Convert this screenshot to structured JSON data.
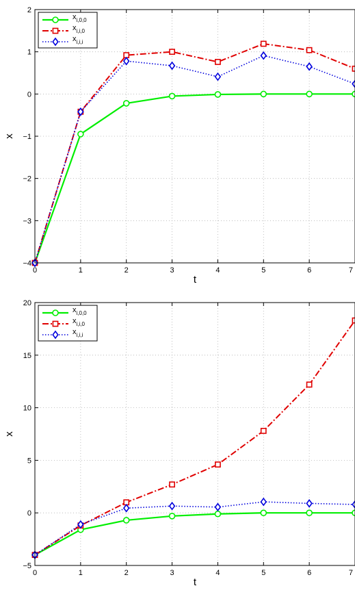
{
  "colors": {
    "x_i00": "#00ee00",
    "x_ii0": "#e00000",
    "x_iii": "#0000dd",
    "grid": "#b0b0b0",
    "axes": "#000000"
  },
  "legend_entries": [
    {
      "base": "x",
      "sub": "i,0,0",
      "key": "x_i00",
      "marker": "circle",
      "dash": "solid"
    },
    {
      "base": "x",
      "sub": "i,i,0",
      "key": "x_ii0",
      "marker": "square",
      "dash": "dashdot"
    },
    {
      "base": "x",
      "sub": "i,i,i",
      "key": "x_iii",
      "marker": "diamond",
      "dash": "dotted"
    }
  ],
  "chart_data": [
    {
      "type": "line",
      "xlabel": "t",
      "ylabel": "x",
      "xlim": [
        0,
        7
      ],
      "ylim": [
        -4,
        2
      ],
      "xticks": [
        0,
        1,
        2,
        3,
        4,
        5,
        6,
        7
      ],
      "yticks": [
        -4,
        -3,
        -2,
        -1,
        0,
        1,
        2
      ],
      "xtick_labels": [
        "0",
        "1",
        "2",
        "3",
        "4",
        "5",
        "6",
        "7"
      ],
      "ytick_labels": [
        "−4",
        "−3",
        "−2",
        "−1",
        "0",
        "1",
        "2"
      ],
      "grid": true,
      "legend": "top-left",
      "x": [
        0,
        1,
        2,
        3,
        4,
        5,
        6,
        7
      ],
      "series": [
        {
          "name": "x_{i,0,0}",
          "key": "x_i00",
          "values": [
            -4,
            -0.95,
            -0.22,
            -0.05,
            -0.01,
            0.0,
            0.0,
            0.0
          ]
        },
        {
          "name": "x_{i,i,0}",
          "key": "x_ii0",
          "values": [
            -4,
            -0.42,
            0.92,
            1.0,
            0.76,
            1.19,
            1.04,
            0.6
          ]
        },
        {
          "name": "x_{i,i,i}",
          "key": "x_iii",
          "values": [
            -4,
            -0.42,
            0.78,
            0.67,
            0.41,
            0.91,
            0.65,
            0.24
          ]
        }
      ]
    },
    {
      "type": "line",
      "xlabel": "t",
      "ylabel": "x",
      "xlim": [
        0,
        7
      ],
      "ylim": [
        -5,
        20
      ],
      "xticks": [
        0,
        1,
        2,
        3,
        4,
        5,
        6,
        7
      ],
      "yticks": [
        -5,
        0,
        5,
        10,
        15,
        20
      ],
      "xtick_labels": [
        "0",
        "1",
        "2",
        "3",
        "4",
        "5",
        "6",
        "7"
      ],
      "ytick_labels": [
        "−5",
        "0",
        "5",
        "10",
        "15",
        "20"
      ],
      "grid": true,
      "legend": "top-left",
      "x": [
        0,
        1,
        2,
        3,
        4,
        5,
        6,
        7
      ],
      "series": [
        {
          "name": "x_{i,0,0}",
          "key": "x_i00",
          "values": [
            -4,
            -1.6,
            -0.7,
            -0.3,
            -0.1,
            0.0,
            0.0,
            0.0
          ]
        },
        {
          "name": "x_{i,i,0}",
          "key": "x_ii0",
          "values": [
            -4,
            -1.2,
            1.0,
            2.7,
            4.6,
            7.8,
            12.2,
            18.3
          ]
        },
        {
          "name": "x_{i,i,i}",
          "key": "x_iii",
          "values": [
            -4,
            -1.1,
            0.45,
            0.65,
            0.55,
            1.05,
            0.9,
            0.8
          ]
        }
      ]
    }
  ]
}
